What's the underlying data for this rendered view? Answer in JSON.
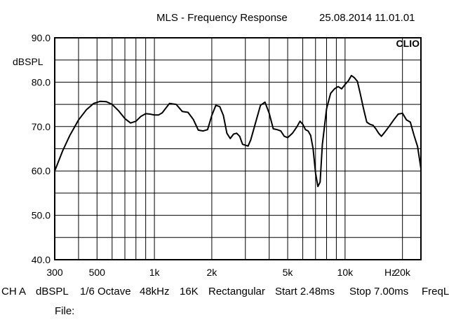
{
  "header": {
    "title": "MLS - Frequency Response",
    "timestamp": "25.08.2014 11.01.01"
  },
  "brand": {
    "logo_text": "CLIO"
  },
  "status_bar": {
    "items": [
      "CH A",
      "dBSPL",
      "1/6 Octave",
      "48kHz",
      "16K",
      "Rectangular",
      "Start 2.48ms",
      "Stop 7.00ms",
      "FreqL"
    ]
  },
  "file": {
    "label": "File:",
    "value": ""
  },
  "chart_data": {
    "type": "line",
    "title": "MLS - Frequency Response",
    "ylabel": "dBSPL",
    "xlabel": "Hz",
    "x_scale": "log",
    "xlim": [
      300,
      25000
    ],
    "ylim": [
      40,
      90
    ],
    "grid": true,
    "y_ticks": [
      {
        "value": 90,
        "label": "90.0"
      },
      {
        "value": 80,
        "label": "80.0"
      },
      {
        "value": 70,
        "label": "70.0"
      },
      {
        "value": 60,
        "label": "60.0"
      },
      {
        "value": 50,
        "label": "50.0"
      },
      {
        "value": 40,
        "label": "40.0"
      }
    ],
    "x_ticks": [
      {
        "value": 300,
        "label": "300"
      },
      {
        "value": 500,
        "label": "500"
      },
      {
        "value": 1000,
        "label": "1k"
      },
      {
        "value": 2000,
        "label": "2k"
      },
      {
        "value": 5000,
        "label": "5k"
      },
      {
        "value": 10000,
        "label": "10k"
      },
      {
        "value": 20000,
        "label": "20k"
      }
    ],
    "series": [
      {
        "color": "#000000",
        "x": [
          300,
          330,
          360,
          400,
          440,
          480,
          520,
          560,
          600,
          650,
          700,
          750,
          800,
          850,
          900,
          950,
          1000,
          1050,
          1100,
          1150,
          1200,
          1300,
          1400,
          1500,
          1600,
          1700,
          1800,
          1900,
          2000,
          2100,
          2200,
          2300,
          2400,
          2500,
          2600,
          2700,
          2800,
          2900,
          3000,
          3100,
          3200,
          3400,
          3600,
          3800,
          4000,
          4200,
          4400,
          4600,
          4800,
          5000,
          5300,
          5600,
          5800,
          6000,
          6200,
          6400,
          6600,
          6800,
          7000,
          7200,
          7400,
          7600,
          8000,
          8400,
          8800,
          9200,
          9600,
          10000,
          10400,
          10800,
          11200,
          11600,
          12000,
          12500,
          13000,
          13500,
          14000,
          14500,
          15000,
          15500,
          16000,
          17000,
          18000,
          19000,
          20000,
          21000,
          22000,
          23000,
          24000,
          25000
        ],
        "y": [
          60.0,
          64.5,
          68.0,
          71.5,
          73.8,
          75.2,
          75.7,
          75.6,
          75.0,
          73.5,
          71.8,
          70.8,
          71.2,
          72.3,
          72.9,
          72.8,
          72.6,
          72.6,
          73.1,
          74.2,
          75.2,
          75.0,
          73.4,
          73.2,
          71.6,
          69.2,
          69.0,
          69.3,
          72.5,
          74.8,
          74.5,
          72.5,
          68.5,
          67.3,
          68.3,
          68.5,
          67.8,
          66.0,
          65.8,
          65.6,
          67.0,
          71.0,
          74.8,
          75.5,
          73.0,
          69.5,
          69.3,
          69.0,
          67.8,
          67.5,
          68.5,
          70.0,
          71.2,
          70.5,
          69.3,
          69.0,
          68.0,
          65.0,
          59.5,
          56.5,
          57.5,
          66.0,
          74.0,
          77.5,
          78.5,
          79.0,
          78.5,
          79.5,
          80.3,
          81.5,
          81.0,
          80.2,
          77.5,
          74.0,
          71.0,
          70.5,
          70.3,
          69.5,
          68.5,
          67.8,
          68.5,
          70.0,
          71.5,
          72.8,
          73.0,
          71.5,
          71.0,
          68.0,
          65.5,
          60.5
        ]
      }
    ]
  }
}
